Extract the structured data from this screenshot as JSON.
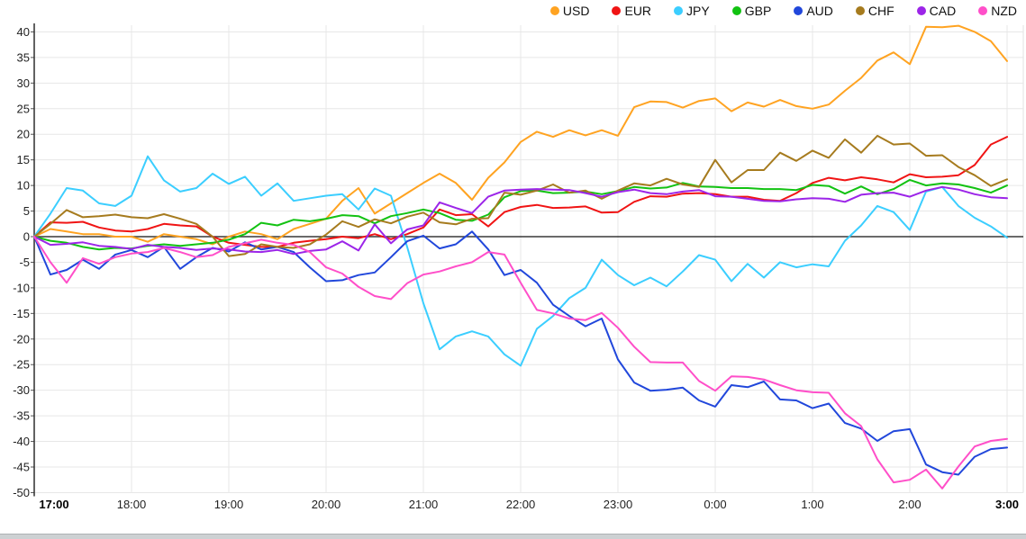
{
  "chart_data": {
    "type": "line",
    "title": "",
    "xlabel": "",
    "ylabel": "",
    "grid": true,
    "zero_line": true,
    "legend_position": "top-right",
    "ylim": [
      -50,
      41.5
    ],
    "y_ticks": [
      40,
      35,
      30,
      25,
      20,
      15,
      10,
      5,
      0,
      -5,
      -10,
      -15,
      -20,
      -25,
      -30,
      -35,
      -40,
      -45,
      -50
    ],
    "x_tick_labels": [
      "17:00",
      "18:00",
      "19:00",
      "20:00",
      "21:00",
      "22:00",
      "23:00",
      "0:00",
      "1:00",
      "2:00",
      "3:00"
    ],
    "x_bold_labels": [
      "17:00",
      "3:00"
    ],
    "x_step_minutes": 10,
    "x_range_minutes": [
      0,
      600
    ],
    "series": [
      {
        "name": "USD",
        "color": "#FFA321",
        "values": [
          0,
          1.5,
          1,
          0.5,
          0.5,
          0,
          0,
          -1,
          0.5,
          0,
          -0.5,
          -1.5,
          0,
          1,
          0.5,
          -0.5,
          1.5,
          2.5,
          3.5,
          7,
          9.5,
          4.5,
          6.5,
          8.5,
          10.5,
          12.3,
          10.5,
          7.2,
          11.5,
          14.5,
          18.5,
          20.5,
          19.5,
          20.8,
          19.8,
          20.8,
          19.7,
          25.3,
          26.4,
          26.3,
          25.2,
          26.5,
          27,
          24.5,
          26.2,
          25.4,
          26.7,
          25.5,
          25,
          25.8,
          28.5,
          31,
          34.4,
          36,
          33.7,
          41,
          40.9,
          41.2,
          40,
          38.2,
          34.3
        ]
      },
      {
        "name": "EUR",
        "color": "#F01414",
        "values": [
          0,
          2.8,
          2.7,
          2.9,
          1.8,
          1.2,
          1,
          1.5,
          2.5,
          2.2,
          2,
          0,
          -1.2,
          -1.6,
          -2,
          -2,
          -1.2,
          -0.8,
          -0.5,
          0,
          -0.3,
          0.5,
          -0.5,
          0.5,
          1.8,
          5.3,
          4.2,
          4.4,
          2,
          4.8,
          5.8,
          6.2,
          5.6,
          5.7,
          5.9,
          4.7,
          4.8,
          6.8,
          7.9,
          7.8,
          8.4,
          8.5,
          8.3,
          7.8,
          7.8,
          7.2,
          7,
          8.5,
          10.5,
          11.5,
          11,
          11.6,
          11.2,
          10.6,
          12.2,
          11.6,
          11.7,
          12,
          14,
          18,
          19.5
        ]
      },
      {
        "name": "JPY",
        "color": "#3BCEFF",
        "values": [
          0,
          4.5,
          9.5,
          9,
          6.5,
          6,
          8,
          15.7,
          11,
          8.8,
          9.5,
          12.3,
          10.3,
          11.7,
          8,
          10.4,
          7,
          7.5,
          8,
          8.3,
          5.3,
          9.4,
          8,
          -2,
          -13,
          -22,
          -19.5,
          -18.5,
          -19.5,
          -23,
          -25.2,
          -18,
          -15.5,
          -12,
          -10,
          -4.5,
          -7.5,
          -9.5,
          -8,
          -9.7,
          -6.8,
          -3.6,
          -4.5,
          -8.7,
          -5.3,
          -8,
          -5,
          -6,
          -5.4,
          -5.8,
          -0.8,
          2.2,
          6,
          4.8,
          1.3,
          8.8,
          9.7,
          6,
          3.7,
          2,
          -0.2
        ]
      },
      {
        "name": "GBP",
        "color": "#12C212",
        "values": [
          0,
          -0.8,
          -1.2,
          -2,
          -2.5,
          -2.2,
          -2.3,
          -1.8,
          -1.5,
          -1.8,
          -1.5,
          -1.2,
          -0.6,
          0.5,
          2.7,
          2.2,
          3.3,
          3,
          3.5,
          4.2,
          4,
          2.6,
          4,
          4.6,
          5.3,
          4.6,
          3.3,
          3.1,
          4.3,
          7.7,
          8.9,
          9,
          8.5,
          8.6,
          8.8,
          8.3,
          8.9,
          9.7,
          9.4,
          9.6,
          10.5,
          9.8,
          9.7,
          9.5,
          9.5,
          9.3,
          9.3,
          9.1,
          10.1,
          9.9,
          8.4,
          9.8,
          8.3,
          9.3,
          11.1,
          10,
          10.4,
          10.2,
          9.5,
          8.6,
          10
        ]
      },
      {
        "name": "AUD",
        "color": "#2147DB",
        "values": [
          0,
          -7.4,
          -6.5,
          -4.5,
          -6.3,
          -3.5,
          -2.6,
          -4,
          -2,
          -6.3,
          -4,
          -2.2,
          -2.9,
          -1.1,
          -2.5,
          -2,
          -3,
          -6,
          -8.7,
          -8.5,
          -7.5,
          -7,
          -4,
          -0.9,
          0.2,
          -2.3,
          -1.5,
          1,
          -2.5,
          -7.5,
          -6.5,
          -9,
          -13.3,
          -15.5,
          -17.5,
          -16,
          -24,
          -28.5,
          -30.1,
          -29.9,
          -29.5,
          -32,
          -33.2,
          -29,
          -29.4,
          -28.3,
          -31.8,
          -32,
          -33.5,
          -32.6,
          -36.4,
          -37.5,
          -39.9,
          -38,
          -37.6,
          -44.5,
          -46,
          -46.5,
          -43,
          -41.5,
          -41.2
        ]
      },
      {
        "name": "CHF",
        "color": "#A67B1E",
        "values": [
          0,
          2.5,
          5.2,
          3.8,
          4,
          4.3,
          3.8,
          3.6,
          4.4,
          3.5,
          2.5,
          0,
          -3.8,
          -3.4,
          -1.5,
          -2,
          -2.2,
          -1.5,
          0.4,
          3,
          1.9,
          3.4,
          2.6,
          3.9,
          4.7,
          2.8,
          2.4,
          3.5,
          3.6,
          8.6,
          8.2,
          9,
          10.2,
          8.6,
          9,
          7.4,
          9,
          10.4,
          10,
          11.3,
          10.2,
          9.7,
          15,
          10.6,
          13,
          13,
          16.4,
          14.8,
          16.8,
          15.4,
          19,
          16.4,
          19.7,
          18,
          18.2,
          15.8,
          15.9,
          13.6,
          12,
          9.9,
          11.2
        ]
      },
      {
        "name": "CAD",
        "color": "#9C25E8",
        "values": [
          0,
          -1.6,
          -1.4,
          -1.1,
          -1.8,
          -2,
          -2.4,
          -1.6,
          -2,
          -2.2,
          -2.6,
          -2.3,
          -2.5,
          -2.9,
          -3,
          -2.6,
          -3.4,
          -2.8,
          -2.5,
          -0.9,
          -2.7,
          2.4,
          -1.3,
          1.4,
          2.2,
          6.7,
          5.6,
          4.6,
          7.8,
          9,
          9.2,
          9.3,
          9.2,
          9.1,
          8.5,
          7.8,
          8.7,
          9.2,
          8.5,
          8.3,
          8.8,
          9.1,
          7.9,
          7.8,
          7.4,
          7,
          6.9,
          7.3,
          7.5,
          7.4,
          6.8,
          8.2,
          8.5,
          8.6,
          7.8,
          9,
          9.7,
          9.2,
          8.3,
          7.7,
          7.5
        ]
      },
      {
        "name": "NZD",
        "color": "#FF4FC9",
        "values": [
          0,
          -5,
          -9,
          -4.2,
          -5.3,
          -4,
          -3.3,
          -3,
          -2.2,
          -3,
          -4,
          -3.6,
          -2,
          -1.3,
          -0.6,
          -1.2,
          -1.6,
          -3,
          -6,
          -7.2,
          -9.8,
          -11.6,
          -12.2,
          -9.1,
          -7.4,
          -6.8,
          -5.8,
          -5,
          -3,
          -3.5,
          -9,
          -14.3,
          -15,
          -16,
          -16.3,
          -14.9,
          -17.8,
          -21.5,
          -24.5,
          -24.6,
          -24.6,
          -28.2,
          -30.1,
          -27.3,
          -27.4,
          -27.9,
          -29,
          -30,
          -30.4,
          -30.5,
          -34.5,
          -37,
          -43.5,
          -48,
          -47.5,
          -45.5,
          -49.2,
          -44.9,
          -41,
          -39.9,
          -39.5
        ]
      }
    ]
  }
}
